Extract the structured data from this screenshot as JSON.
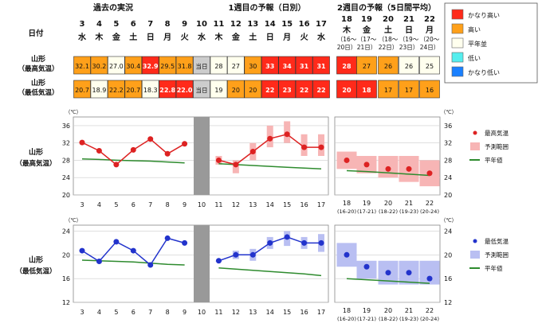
{
  "header": {
    "date_label": "日付",
    "sections": [
      "過去の実況",
      "1週目の予報（日別）",
      "2週目の予報（5日間平均）"
    ],
    "daily_days": [
      "3",
      "4",
      "5",
      "6",
      "7",
      "8",
      "9",
      "10",
      "11",
      "12",
      "13",
      "14",
      "15",
      "16",
      "17"
    ],
    "daily_weekdays": [
      "水",
      "木",
      "金",
      "土",
      "日",
      "月",
      "火",
      "水",
      "木",
      "金",
      "土",
      "日",
      "月",
      "火",
      "水"
    ],
    "weekly_days": [
      "18",
      "19",
      "20",
      "21",
      "22"
    ],
    "weekly_weekdays": [
      "木",
      "金",
      "土",
      "日",
      "月"
    ],
    "weekly_ranges": [
      "（16〜20日）",
      "（17〜21日）",
      "（18〜22日）",
      "（19〜23日）",
      "（20〜24日）"
    ]
  },
  "table": {
    "row_labels": [
      [
        "山形",
        "（最高気温）"
      ],
      [
        "山形",
        "（最低気温）"
      ]
    ],
    "today_label": "当日",
    "max_cells": [
      "32.1",
      "30.2",
      "27.0",
      "30.4",
      "32.9",
      "29.5",
      "31.8",
      "当日",
      "28",
      "27",
      "30",
      "33",
      "34",
      "31",
      "31",
      "28",
      "27",
      "26",
      "26",
      "25"
    ],
    "max_levels": [
      "hi",
      "hi",
      "norm",
      "hi",
      "vhi",
      "hi",
      "hi",
      "today",
      "norm",
      "norm",
      "hi",
      "vhi",
      "vhi",
      "vhi",
      "vhi",
      "vhi",
      "hi",
      "hi",
      "norm",
      "norm"
    ],
    "min_cells": [
      "20.7",
      "18.9",
      "22.2",
      "20.7",
      "18.3",
      "22.8",
      "22.0",
      "当日",
      "19",
      "20",
      "20",
      "22",
      "23",
      "22",
      "22",
      "20",
      "18",
      "17",
      "17",
      "16"
    ],
    "min_levels": [
      "hi",
      "norm",
      "hi",
      "hi",
      "norm",
      "vhi",
      "vhi",
      "today",
      "norm",
      "hi",
      "hi",
      "vhi",
      "vhi",
      "vhi",
      "vhi",
      "vhi",
      "vhi",
      "hi",
      "hi",
      "hi"
    ]
  },
  "legend": {
    "categories": [
      {
        "label": "かなり高い",
        "color": "#ff2a1a"
      },
      {
        "label": "高い",
        "color": "#ffa01a"
      },
      {
        "label": "平年並",
        "color": "#ffffee"
      },
      {
        "label": "低い",
        "color": "#55eeee"
      },
      {
        "label": "かなり低い",
        "color": "#1a80ff"
      }
    ],
    "max_chart": [
      "最高気温",
      "予測範囲",
      "平年値"
    ],
    "min_chart": [
      "最低気温",
      "予測範囲",
      "平年値"
    ]
  },
  "colors": {
    "very_high": "#ff2a1a",
    "high": "#ffa01a",
    "normal": "#ffffee",
    "today": "#cccccc",
    "max_line": "#dd2222",
    "max_range": "#f7b5b5",
    "min_line": "#2233cc",
    "min_range": "#b9bff2",
    "normal_line": "#2e8b2e",
    "gap": "#999999"
  },
  "chart_data": [
    {
      "type": "line",
      "title": "",
      "label": [
        "山形",
        "（最高気温）"
      ],
      "unit": "（℃）",
      "ylim": [
        20,
        38
      ],
      "yticks": [
        20,
        24,
        28,
        32,
        36
      ],
      "x": [
        "3",
        "4",
        "5",
        "6",
        "7",
        "8",
        "9",
        "10",
        "11",
        "12",
        "13",
        "14",
        "15",
        "16",
        "17"
      ],
      "x_weekly": [
        "18",
        "19",
        "20",
        "21",
        "22"
      ],
      "x_weekly_sub": [
        "(16-20)",
        "(17-21)",
        "(18-22)",
        "(19-23)",
        "(20-24)"
      ],
      "series": [
        {
          "name": "最高気温",
          "observed": [
            32.1,
            30.2,
            27.0,
            30.4,
            32.9,
            29.5,
            31.8
          ],
          "forecast": [
            28,
            27,
            30,
            33,
            34,
            31,
            31
          ],
          "weekly": [
            28,
            27,
            26,
            26,
            25
          ]
        },
        {
          "name": "予測範囲",
          "forecast_range": [
            [
              27,
              29
            ],
            [
              25,
              28
            ],
            [
              28,
              32
            ],
            [
              31,
              36
            ],
            [
              32,
              37
            ],
            [
              29,
              34
            ],
            [
              29,
              34
            ]
          ],
          "weekly_range": [
            [
              26,
              30
            ],
            [
              25,
              29
            ],
            [
              24,
              29
            ],
            [
              23,
              29
            ],
            [
              22,
              28
            ]
          ]
        },
        {
          "name": "平年値",
          "daily": [
            28.3,
            28.2,
            28.0,
            27.9,
            27.8,
            27.6,
            27.4,
            null,
            27.2,
            27.0,
            26.8,
            26.6,
            26.4,
            26.2,
            26.0
          ],
          "weekly": [
            25.6,
            25.4,
            25.1,
            24.8,
            24.5
          ]
        }
      ]
    },
    {
      "type": "line",
      "title": "",
      "label": [
        "山形",
        "（最低気温）"
      ],
      "unit": "（℃）",
      "ylim": [
        12,
        25
      ],
      "yticks": [
        12,
        16,
        20,
        24
      ],
      "x": [
        "3",
        "4",
        "5",
        "6",
        "7",
        "8",
        "9",
        "10",
        "11",
        "12",
        "13",
        "14",
        "15",
        "16",
        "17"
      ],
      "x_weekly": [
        "18",
        "19",
        "20",
        "21",
        "22"
      ],
      "x_weekly_sub": [
        "(16-20)",
        "(17-21)",
        "(18-22)",
        "(19-23)",
        "(20-24)"
      ],
      "series": [
        {
          "name": "最低気温",
          "observed": [
            20.7,
            18.9,
            22.2,
            20.7,
            18.3,
            22.8,
            22.0
          ],
          "forecast": [
            19,
            20,
            20,
            22,
            23,
            22,
            22
          ],
          "weekly": [
            20,
            18,
            17,
            17,
            16
          ]
        },
        {
          "name": "予測範囲",
          "forecast_range": [
            [
              19,
              19
            ],
            [
              19.3,
              20.7
            ],
            [
              19,
              21
            ],
            [
              21,
              23
            ],
            [
              21.5,
              24
            ],
            [
              21,
              23
            ],
            [
              20.5,
              23.5
            ]
          ],
          "weekly_range": [
            [
              18,
              22
            ],
            [
              16,
              19
            ],
            [
              15,
              19
            ],
            [
              15,
              19
            ],
            [
              15,
              19
            ]
          ]
        },
        {
          "name": "平年値",
          "daily": [
            19.1,
            19.0,
            18.9,
            18.8,
            18.6,
            18.4,
            18.3,
            null,
            17.8,
            17.6,
            17.4,
            17.2,
            17.0,
            16.8,
            16.5
          ],
          "weekly": [
            16.0,
            15.8,
            15.6,
            15.4,
            15.2
          ]
        }
      ]
    }
  ]
}
